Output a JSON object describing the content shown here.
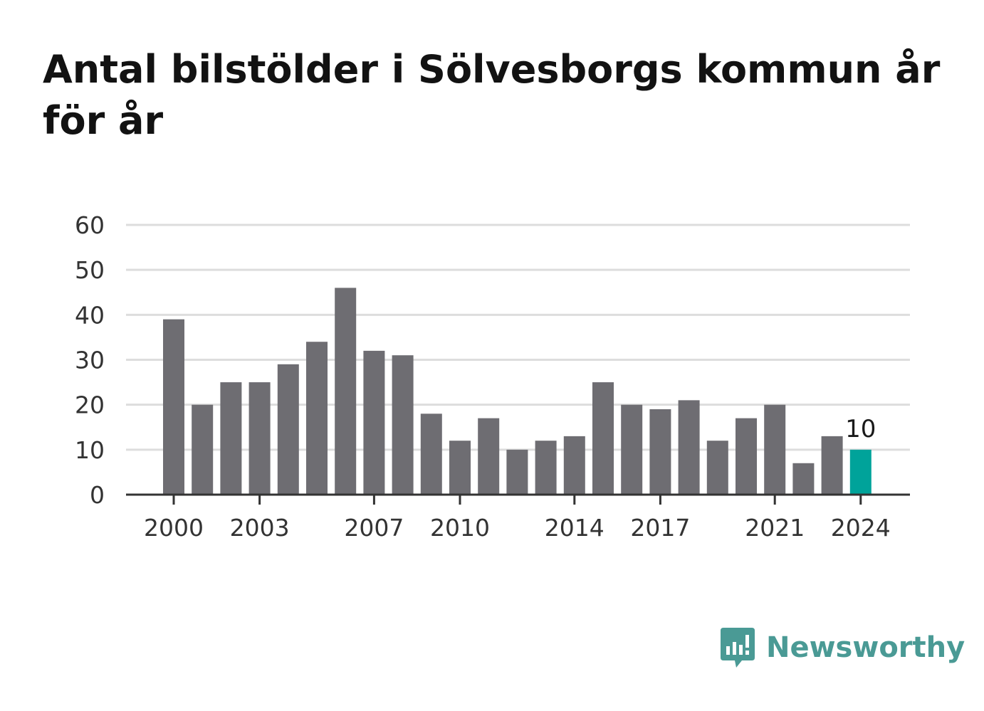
{
  "title": "Antal bilstölder i Sölvesborgs kommun år för år",
  "brand": {
    "name": "Newsworthy",
    "icon": "newsworthy-logo-icon",
    "color": "#4a9a95"
  },
  "colors": {
    "bar": "#6e6d72",
    "highlight": "#00a39a",
    "grid": "#dddddd",
    "axis": "#333333"
  },
  "chart_data": {
    "type": "bar",
    "title": "Antal bilstölder i Sölvesborgs kommun år för år",
    "xlabel": "",
    "ylabel": "",
    "categories": [
      2000,
      2001,
      2002,
      2003,
      2004,
      2005,
      2006,
      2007,
      2008,
      2009,
      2010,
      2011,
      2012,
      2013,
      2014,
      2015,
      2016,
      2017,
      2018,
      2019,
      2020,
      2021,
      2022,
      2023,
      2024
    ],
    "values": [
      39,
      20,
      25,
      25,
      29,
      34,
      46,
      32,
      31,
      18,
      12,
      17,
      10,
      12,
      13,
      25,
      20,
      19,
      21,
      12,
      17,
      20,
      7,
      13,
      10
    ],
    "x_tick_labels": [
      "2000",
      "2003",
      "2007",
      "2010",
      "2014",
      "2017",
      "2021",
      "2024"
    ],
    "y_ticks": [
      0,
      10,
      20,
      30,
      40,
      50,
      60
    ],
    "ylim": [
      0,
      60
    ],
    "grid": true,
    "highlight": {
      "category": 2024,
      "value": 10,
      "label": "10"
    }
  }
}
